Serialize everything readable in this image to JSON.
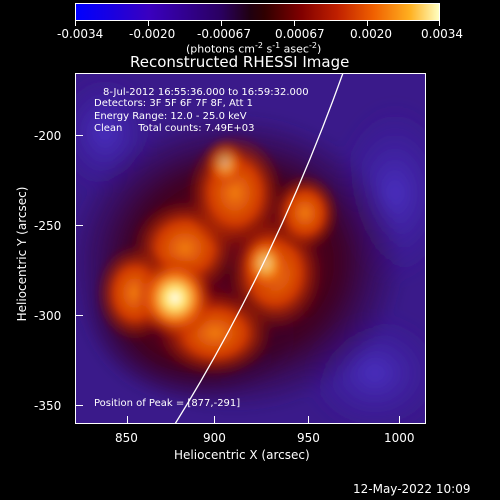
{
  "colorbar": {
    "tick_labels": [
      "-0.0034",
      "-0.0020",
      "-0.00067",
      "0.00067",
      "0.0020",
      "0.0034"
    ],
    "units_main": "(photons cm",
    "units_exp1": "-2",
    "units_mid": " s",
    "units_exp2": "-1",
    "units_tail": " asec",
    "units_exp3": "-2",
    "units_close": ")",
    "range": [
      -0.0034,
      0.0034
    ],
    "colormap": "red-temperature with blue negatives"
  },
  "image": {
    "title": "Reconstructed RHESSI Image",
    "info_line1": "8-Jul-2012 16:55:36.000 to 16:59:32.000",
    "info_line2": "Detectors: 3F 5F 6F 7F 8F, Att 1",
    "info_line3": "Energy Range: 12.0 - 25.0 keV",
    "info_line4": "Clean     Total counts: 7.49E+03",
    "peak_label": "Position of Peak = [877,-291]"
  },
  "axes": {
    "xlabel": "Heliocentric X (arcsec)",
    "ylabel": "Heliocentric Y (arcsec)",
    "xticks": [
      "850",
      "900",
      "950",
      "1000"
    ],
    "yticks": [
      "-200",
      "-250",
      "-300",
      "-350"
    ],
    "xrange": [
      823,
      1012
    ],
    "yrange": [
      -368,
      -177
    ]
  },
  "footer": {
    "timestamp": "12-May-2022 10:09"
  },
  "colors": {
    "background": "#000000",
    "foreground": "#ffffff",
    "negative": "#3a1ca0",
    "peak": "#ffffe0"
  }
}
